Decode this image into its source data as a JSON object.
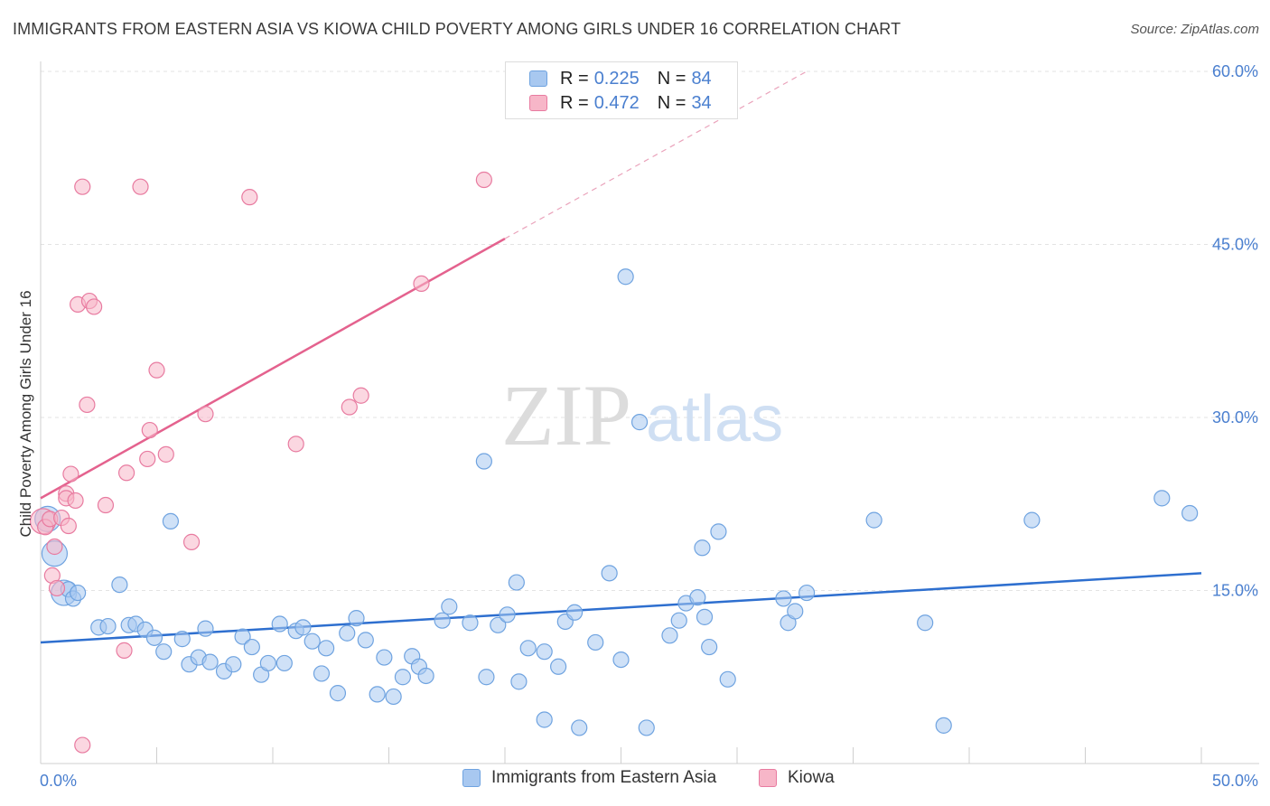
{
  "header": {
    "title": "IMMIGRANTS FROM EASTERN ASIA VS KIOWA CHILD POVERTY AMONG GIRLS UNDER 16 CORRELATION CHART",
    "source": "Source: ZipAtlas.com"
  },
  "watermark": {
    "zip": "ZIP",
    "atlas": "atlas"
  },
  "legend": {
    "r_label": "R =",
    "n_label": "N =",
    "rows": [
      {
        "r": "0.225",
        "n": "84",
        "color": "#a8c8f0"
      },
      {
        "r": "0.472",
        "n": "34",
        "color": "#f7b6c8"
      }
    ]
  },
  "bottom_legend": [
    {
      "label": "Immigrants from Eastern Asia",
      "color": "#a8c8f0"
    },
    {
      "label": "Kiowa",
      "color": "#f7b6c8"
    }
  ],
  "chart_data": {
    "type": "scatter",
    "title": "IMMIGRANTS FROM EASTERN ASIA VS KIOWA CHILD POVERTY AMONG GIRLS UNDER 16 CORRELATION CHART",
    "xlabel": "",
    "ylabel": "Child Poverty Among Girls Under 16",
    "xlim": [
      0,
      50
    ],
    "ylim": [
      0,
      60
    ],
    "x_tick_labels": [
      "0.0%",
      "50.0%"
    ],
    "y_ticks": [
      15,
      30,
      45,
      60
    ],
    "y_tick_labels": [
      "15.0%",
      "30.0%",
      "45.0%",
      "60.0%"
    ],
    "grid": true,
    "legend_position": "top-center",
    "series": [
      {
        "name": "Immigrants from Eastern Asia",
        "color": "#6fa3e0",
        "fill": "#a8c8f0",
        "r": 0.225,
        "n": 84,
        "trend": {
          "x": [
            0,
            50
          ],
          "y": [
            10.5,
            16.5
          ]
        },
        "points": [
          [
            0.3,
            21.2
          ],
          [
            0.6,
            18.2
          ],
          [
            1.0,
            14.8
          ],
          [
            1.2,
            15.1
          ],
          [
            1.4,
            14.3
          ],
          [
            1.6,
            14.8
          ],
          [
            2.5,
            11.8
          ],
          [
            2.9,
            11.9
          ],
          [
            3.4,
            15.5
          ],
          [
            3.8,
            12.0
          ],
          [
            4.1,
            12.1
          ],
          [
            4.5,
            11.6
          ],
          [
            4.9,
            10.9
          ],
          [
            5.3,
            9.7
          ],
          [
            5.6,
            21.0
          ],
          [
            6.1,
            10.8
          ],
          [
            6.4,
            8.6
          ],
          [
            6.8,
            9.2
          ],
          [
            7.1,
            11.7
          ],
          [
            7.3,
            8.8
          ],
          [
            7.9,
            8.0
          ],
          [
            8.3,
            8.6
          ],
          [
            8.7,
            11.0
          ],
          [
            9.1,
            10.1
          ],
          [
            9.5,
            7.7
          ],
          [
            9.8,
            8.7
          ],
          [
            10.3,
            12.1
          ],
          [
            10.5,
            8.7
          ],
          [
            11.0,
            11.5
          ],
          [
            11.3,
            11.8
          ],
          [
            11.7,
            10.6
          ],
          [
            12.1,
            7.8
          ],
          [
            12.3,
            10.0
          ],
          [
            12.8,
            6.1
          ],
          [
            13.2,
            11.3
          ],
          [
            13.6,
            12.6
          ],
          [
            14.0,
            10.7
          ],
          [
            14.5,
            6.0
          ],
          [
            14.8,
            9.2
          ],
          [
            15.2,
            5.8
          ],
          [
            15.6,
            7.5
          ],
          [
            16.0,
            9.3
          ],
          [
            16.3,
            8.4
          ],
          [
            16.6,
            7.6
          ],
          [
            17.3,
            12.4
          ],
          [
            17.6,
            13.6
          ],
          [
            18.5,
            12.2
          ],
          [
            19.2,
            7.5
          ],
          [
            19.1,
            26.2
          ],
          [
            19.7,
            12.0
          ],
          [
            20.1,
            12.9
          ],
          [
            20.5,
            15.7
          ],
          [
            20.6,
            7.1
          ],
          [
            21.0,
            10.0
          ],
          [
            21.7,
            9.7
          ],
          [
            21.7,
            3.8
          ],
          [
            22.3,
            8.4
          ],
          [
            22.6,
            12.3
          ],
          [
            23.2,
            3.1
          ],
          [
            23.0,
            13.1
          ],
          [
            23.9,
            10.5
          ],
          [
            24.5,
            16.5
          ],
          [
            25.0,
            9.0
          ],
          [
            25.8,
            29.6
          ],
          [
            26.1,
            3.1
          ],
          [
            27.1,
            11.1
          ],
          [
            27.5,
            12.4
          ],
          [
            27.8,
            13.9
          ],
          [
            28.3,
            14.4
          ],
          [
            28.6,
            12.7
          ],
          [
            28.5,
            18.7
          ],
          [
            28.8,
            10.1
          ],
          [
            29.2,
            20.1
          ],
          [
            29.6,
            7.3
          ],
          [
            32.0,
            14.3
          ],
          [
            32.2,
            12.2
          ],
          [
            32.5,
            13.2
          ],
          [
            33.0,
            14.8
          ],
          [
            35.9,
            21.1
          ],
          [
            38.1,
            12.2
          ],
          [
            38.9,
            3.3
          ],
          [
            42.7,
            21.1
          ],
          [
            48.3,
            23.0
          ],
          [
            49.5,
            21.7
          ],
          [
            25.2,
            42.2
          ]
        ],
        "large_points": [
          [
            0.3,
            21.2
          ],
          [
            0.6,
            18.2
          ],
          [
            1.0,
            14.8
          ]
        ]
      },
      {
        "name": "Kiowa",
        "color": "#e87ba0",
        "fill": "#f7b6c8",
        "r": 0.472,
        "n": 34,
        "trend": {
          "x": [
            0,
            20
          ],
          "y": [
            23.0,
            45.5
          ]
        },
        "trend_dashed": {
          "x": [
            20,
            33
          ],
          "y": [
            45.5,
            60.0
          ]
        },
        "points": [
          [
            0.1,
            21.0
          ],
          [
            0.2,
            20.5
          ],
          [
            0.4,
            21.2
          ],
          [
            0.5,
            16.3
          ],
          [
            0.6,
            18.8
          ],
          [
            0.7,
            15.2
          ],
          [
            0.9,
            21.3
          ],
          [
            1.1,
            23.4
          ],
          [
            1.1,
            23.0
          ],
          [
            1.2,
            20.6
          ],
          [
            1.3,
            25.1
          ],
          [
            1.5,
            22.8
          ],
          [
            1.8,
            1.6
          ],
          [
            1.6,
            39.8
          ],
          [
            1.8,
            50.0
          ],
          [
            2.0,
            31.1
          ],
          [
            2.1,
            40.1
          ],
          [
            2.3,
            39.6
          ],
          [
            2.8,
            22.4
          ],
          [
            3.6,
            9.8
          ],
          [
            3.7,
            25.2
          ],
          [
            4.3,
            50.0
          ],
          [
            4.6,
            26.4
          ],
          [
            4.7,
            28.9
          ],
          [
            5.0,
            34.1
          ],
          [
            5.4,
            26.8
          ],
          [
            6.5,
            19.2
          ],
          [
            7.1,
            30.3
          ],
          [
            9.0,
            49.1
          ],
          [
            11.0,
            27.7
          ],
          [
            13.3,
            30.9
          ],
          [
            13.8,
            31.9
          ],
          [
            16.4,
            41.6
          ],
          [
            19.1,
            50.6
          ]
        ],
        "large_points": [
          [
            0.1,
            21.0
          ]
        ]
      }
    ]
  }
}
